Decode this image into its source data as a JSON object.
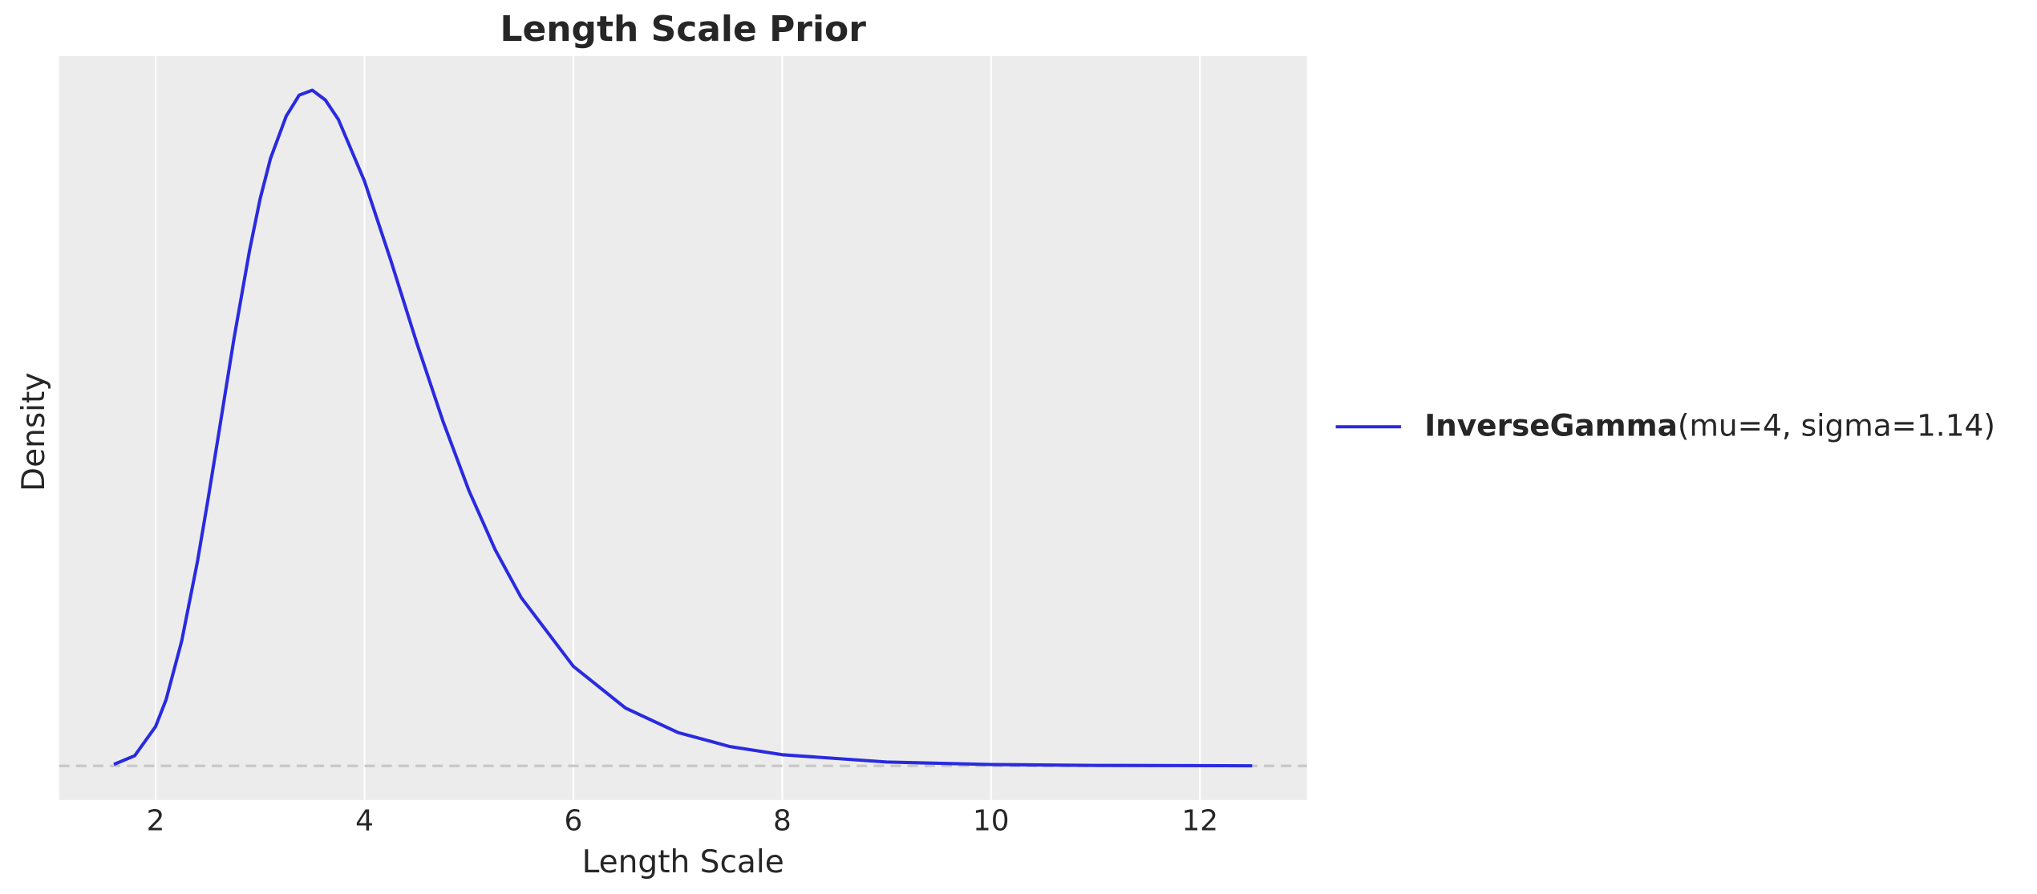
{
  "chart_data": {
    "type": "line",
    "title": "Length Scale Prior",
    "x_label": "Length Scale",
    "y_label": "Density",
    "x": [
      1.6,
      1.8,
      2,
      2.1,
      2.25,
      2.4,
      2.5,
      2.6,
      2.75,
      2.9,
      3,
      3.1,
      3.25,
      3.375,
      3.5,
      3.625,
      3.75,
      4,
      4.25,
      4.5,
      4.75,
      5,
      5.25,
      5.5,
      6,
      6.5,
      7,
      7.5,
      8,
      9,
      10,
      11,
      12.5
    ],
    "series": [
      {
        "name": "InverseGamma(mu=4, sigma=1.14)",
        "color": "#2a2adf",
        "values": [
          0.00095,
          0.0063,
          0.0243,
          0.0408,
          0.077,
          0.1257,
          0.1635,
          0.203,
          0.263,
          0.3176,
          0.349,
          0.374,
          0.4,
          0.413,
          0.416,
          0.41,
          0.398,
          0.36,
          0.3116,
          0.2605,
          0.2125,
          0.1695,
          0.1333,
          0.1037,
          0.0613,
          0.0356,
          0.0206,
          0.0119,
          0.0069,
          0.0024,
          0.00086,
          0.00032,
          8e-05
        ]
      }
    ],
    "xlim": [
      1.075,
      13.025
    ],
    "ylim": [
      -0.021,
      0.437
    ],
    "xticks": [
      2,
      4,
      6,
      8,
      10,
      12
    ],
    "grid": "x",
    "hline": 0,
    "legend": "outside right"
  }
}
